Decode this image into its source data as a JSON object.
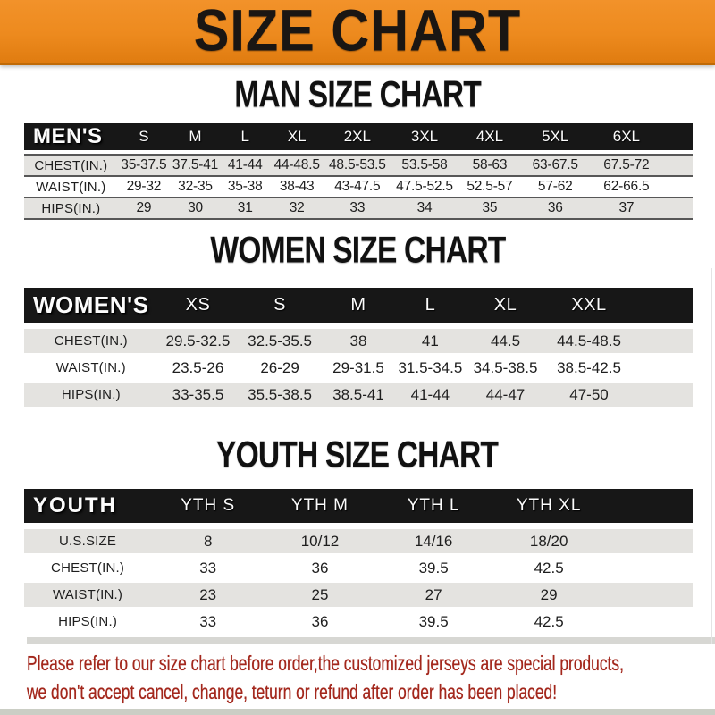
{
  "banner": {
    "title": "SIZE CHART"
  },
  "sections": [
    {
      "heading": "MAN SIZE CHART",
      "table": {
        "header_label": "MEN'S",
        "columns": [
          "S",
          "M",
          "L",
          "XL",
          "2XL",
          "3XL",
          "4XL",
          "5XL",
          "6XL"
        ],
        "rows": [
          {
            "label": "CHEST(IN.)",
            "values": [
              "35-37.5",
              "37.5-41",
              "41-44",
              "44-48.5",
              "48.5-53.5",
              "53.5-58",
              "58-63",
              "63-67.5",
              "67.5-72"
            ]
          },
          {
            "label": "WAIST(IN.)",
            "values": [
              "29-32",
              "32-35",
              "35-38",
              "38-43",
              "43-47.5",
              "47.5-52.5",
              "52.5-57",
              "57-62",
              "62-66.5"
            ]
          },
          {
            "label": "HIPS(IN.)",
            "values": [
              "29",
              "30",
              "31",
              "32",
              "33",
              "34",
              "35",
              "36",
              "37"
            ]
          }
        ]
      }
    },
    {
      "heading": "WOMEN SIZE CHART",
      "table": {
        "header_label": "WOMEN'S",
        "columns": [
          "XS",
          "S",
          "M",
          "L",
          "XL",
          "XXL"
        ],
        "rows": [
          {
            "label": "CHEST(IN.)",
            "values": [
              "29.5-32.5",
              "32.5-35.5",
              "38",
              "41",
              "44.5",
              "44.5-48.5"
            ]
          },
          {
            "label": "WAIST(IN.)",
            "values": [
              "23.5-26",
              "26-29",
              "29-31.5",
              "31.5-34.5",
              "34.5-38.5",
              "38.5-42.5"
            ]
          },
          {
            "label": "HIPS(IN.)",
            "values": [
              "33-35.5",
              "35.5-38.5",
              "38.5-41",
              "41-44",
              "44-47",
              "47-50"
            ]
          }
        ]
      }
    },
    {
      "heading": "YOUTH SIZE CHART",
      "table": {
        "header_label": "YOUTH",
        "columns": [
          "YTH S",
          "YTH M",
          "YTH L",
          "YTH XL"
        ],
        "rows": [
          {
            "label": "U.S.SIZE",
            "values": [
              "8",
              "10/12",
              "14/16",
              "18/20"
            ]
          },
          {
            "label": "CHEST(IN.)",
            "values": [
              "33",
              "36",
              "39.5",
              "42.5"
            ]
          },
          {
            "label": "WAIST(IN.)",
            "values": [
              "23",
              "25",
              "27",
              "29"
            ]
          },
          {
            "label": "HIPS(IN.)",
            "values": [
              "33",
              "36",
              "39.5",
              "42.5"
            ]
          }
        ]
      }
    }
  ],
  "footer": {
    "line1": "Please refer to our size chart before order,the customized jerseys are special products,",
    "line2": "we don't accept cancel, change, teturn or refund after order has been placed!"
  },
  "colors": {
    "banner_bg": "#ED8A1E",
    "banner_text": "#1A1613",
    "header_bar_bg": "#171717",
    "header_bar_text": "#FFFFFF",
    "row_stripe": "#E4E3E0",
    "row_separator": "#575757",
    "footer_text": "#A3271C"
  }
}
